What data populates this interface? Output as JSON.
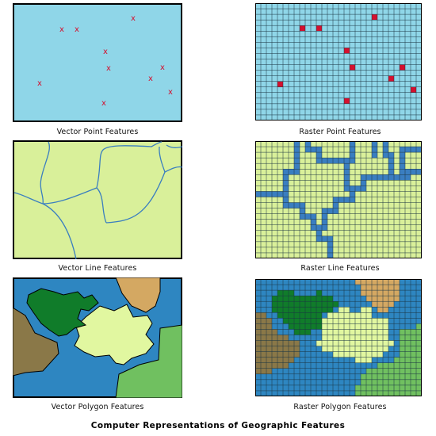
{
  "figure": {
    "title": "Computer Representations of Geographic Features",
    "colors": {
      "water": "#8fd6e8",
      "land": "#d9f09a",
      "point_marker": "#d4102e",
      "line_feature": "#3a7ec0",
      "poly_blue": "#2e86c1",
      "poly_tan": "#d4a862",
      "poly_brown": "#8a7848",
      "poly_darkgreen": "#107c2a",
      "poly_lightyellow": "#e1f7a0",
      "poly_green": "#70c060",
      "grid_line": "#1a3340"
    },
    "panels": [
      {
        "id": "vector-point",
        "caption": "Vector Point Features",
        "marker_symbol": "x"
      },
      {
        "id": "raster-point",
        "caption": "Raster Point Features"
      },
      {
        "id": "vector-line",
        "caption": "Vector Line Features"
      },
      {
        "id": "raster-line",
        "caption": "Raster Line Features"
      },
      {
        "id": "vector-polygon",
        "caption": "Vector Polygon Features"
      },
      {
        "id": "raster-polygon",
        "caption": "Raster Polygon Features"
      }
    ]
  }
}
